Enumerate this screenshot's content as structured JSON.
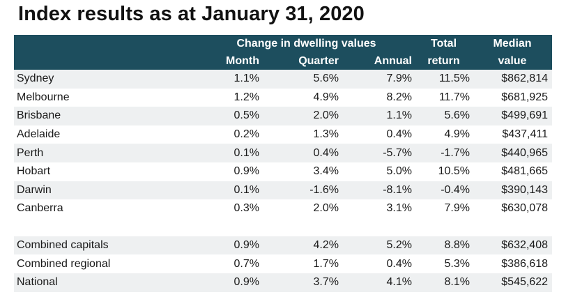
{
  "title": "Index results as at January 31, 2020",
  "chart_data": {
    "type": "table",
    "title": "Index results as at January 31, 2020",
    "group_header": "Change in dwelling values",
    "columns": {
      "month": "Month",
      "quarter": "Quarter",
      "annual": "Annual",
      "total_return_line1": "Total",
      "total_return_line2": "return",
      "median_value_line1": "Median",
      "median_value_line2": "value"
    },
    "rows": [
      {
        "name": "Sydney",
        "month": "1.1%",
        "quarter": "5.6%",
        "annual": "7.9%",
        "total_return": "11.5%",
        "median_value": "$862,814"
      },
      {
        "name": "Melbourne",
        "month": "1.2%",
        "quarter": "4.9%",
        "annual": "8.2%",
        "total_return": "11.7%",
        "median_value": "$681,925"
      },
      {
        "name": "Brisbane",
        "month": "0.5%",
        "quarter": "2.0%",
        "annual": "1.1%",
        "total_return": "5.6%",
        "median_value": "$499,691"
      },
      {
        "name": "Adelaide",
        "month": "0.2%",
        "quarter": "1.3%",
        "annual": "0.4%",
        "total_return": "4.9%",
        "median_value": "$437,411"
      },
      {
        "name": "Perth",
        "month": "0.1%",
        "quarter": "0.4%",
        "annual": "-5.7%",
        "total_return": "-1.7%",
        "median_value": "$440,965"
      },
      {
        "name": "Hobart",
        "month": "0.9%",
        "quarter": "3.4%",
        "annual": "5.0%",
        "total_return": "10.5%",
        "median_value": "$481,665"
      },
      {
        "name": "Darwin",
        "month": "0.1%",
        "quarter": "-1.6%",
        "annual": "-8.1%",
        "total_return": "-0.4%",
        "median_value": "$390,143"
      },
      {
        "name": "Canberra",
        "month": "0.3%",
        "quarter": "2.0%",
        "annual": "3.1%",
        "total_return": "7.9%",
        "median_value": "$630,078"
      },
      {
        "name": "Combined capitals",
        "month": "0.9%",
        "quarter": "4.2%",
        "annual": "5.2%",
        "total_return": "8.8%",
        "median_value": "$632,408"
      },
      {
        "name": "Combined regional",
        "month": "0.7%",
        "quarter": "1.7%",
        "annual": "0.4%",
        "total_return": "5.3%",
        "median_value": "$386,618"
      },
      {
        "name": "National",
        "month": "0.9%",
        "quarter": "3.7%",
        "annual": "4.1%",
        "total_return": "8.1%",
        "median_value": "$545,622"
      }
    ]
  },
  "colors": {
    "header_background": "#1d4e5e",
    "header_text": "#ffffff",
    "row_shade": "#eef0f1"
  }
}
